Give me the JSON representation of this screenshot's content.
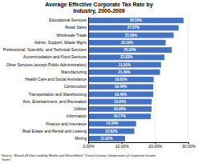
{
  "chart_data": {
    "type": "bar",
    "orientation": "horizontal",
    "title": "Average Effective Corporate Tax Rate by\nIndustry, 2000-2009",
    "categories": [
      "Educational Services",
      "Retail Sales",
      "Wholesale Trade",
      "Admin, Support, Waste Mgmt",
      "Professional, Scientific, and Technical Services",
      "Accommodation and Food Services",
      "Other Services (except Public Administration)",
      "Manufacturing",
      "Health Care and Social Assistance",
      "Construction",
      "Transportation and Warehousing",
      "Arts, Entertainment, and Recreation",
      "Utilities",
      "Information",
      "Finance and Insurance",
      "Real Estate and Rental and Leasing",
      "Mining"
    ],
    "values": [
      28.53,
      27.07,
      25.58,
      23.19,
      25.03,
      22.83,
      21.81,
      21.49,
      19.61,
      19.45,
      19.49,
      19.04,
      18.96,
      18.77,
      14.34,
      13.82,
      11.02
    ],
    "value_labels": [
      "28.53%",
      "27.07%",
      "25.58%",
      "23.19%",
      "25.03%",
      "22.83%",
      "21.81%",
      "21.49%",
      "19.61%",
      "19.45%",
      "19.49%",
      "19.04%",
      "18.96%",
      "18.77%",
      "14.34%",
      "13.82%",
      "11.02%"
    ],
    "data_labels": true,
    "color": "#4472C4",
    "xlim": [
      0,
      30
    ],
    "xticks": [
      {
        "value": 0,
        "label": "0.00%"
      },
      {
        "value": 10,
        "label": "10.00%"
      },
      {
        "value": 20,
        "label": "20.00%"
      },
      {
        "value": 30,
        "label": "30.00%"
      }
    ],
    "grid": true,
    "annotations": [
      "Source:  Based off Data used by Markle and Shackelford, \"Cross-Country Comparisons of Corporate Income\nTaxes\""
    ]
  }
}
